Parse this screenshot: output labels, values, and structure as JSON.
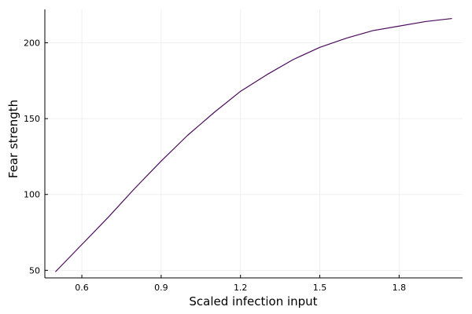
{
  "chart_data": {
    "type": "line",
    "xlabel": "Scaled infection input",
    "ylabel": "Fear strength",
    "xlim": [
      0.46,
      2.04
    ],
    "ylim": [
      45,
      222
    ],
    "xticks": [
      0.6,
      0.9,
      1.2,
      1.5,
      1.8
    ],
    "xtick_labels": [
      "0.6",
      "0.9",
      "1.2",
      "1.5",
      "1.8"
    ],
    "yticks": [
      50,
      100,
      150,
      200
    ],
    "ytick_labels": [
      "50",
      "100",
      "150",
      "200"
    ],
    "grid": true,
    "legend": "none",
    "series": [
      {
        "color": "#4b0b5c",
        "x": [
          0.5,
          0.6,
          0.7,
          0.8,
          0.9,
          1.0,
          1.1,
          1.2,
          1.3,
          1.4,
          1.5,
          1.6,
          1.7,
          1.8,
          1.9,
          2.0
        ],
        "y": [
          49,
          67,
          85,
          104,
          122,
          139,
          154,
          168,
          179,
          189,
          197,
          203,
          208,
          211,
          214,
          216
        ]
      }
    ]
  },
  "colors": {
    "grid": "#ebebeb",
    "axis": "#000000",
    "background": "#ffffff"
  }
}
